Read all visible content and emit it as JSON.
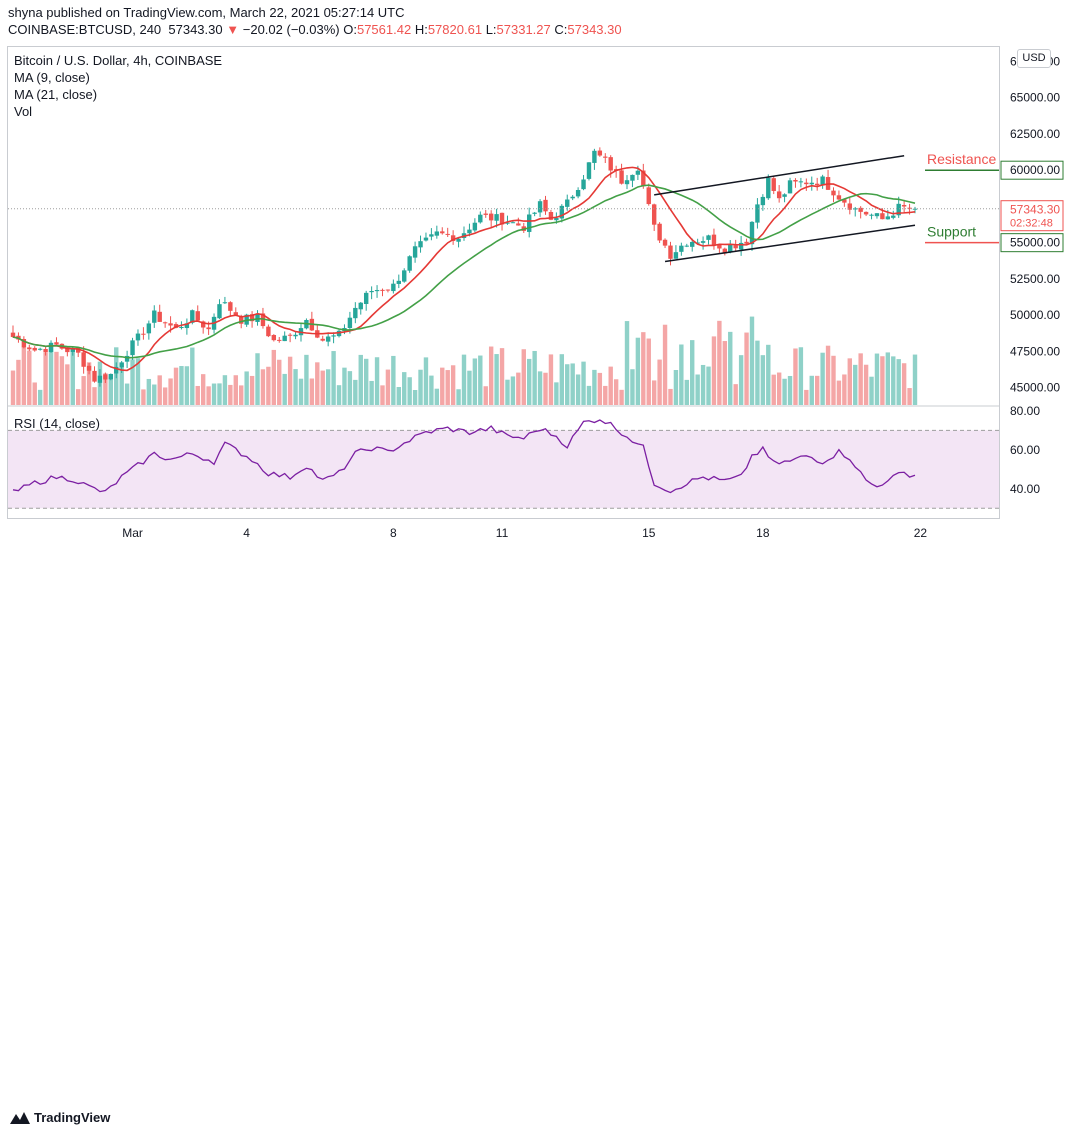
{
  "header": {
    "publisher": "shyna published on TradingView.com, March 22, 2021 05:27:14 UTC",
    "symbol": "COINBASE:BTCUSD, 240",
    "last": "57343.30",
    "arrow": "▼",
    "change": "−20.02 (−0.03%)",
    "o_label": "O:",
    "o_val": "57561.42",
    "h_label": "H:",
    "h_val": "57820.61",
    "l_label": "L:",
    "l_val": "57331.27",
    "c_label": "C:",
    "c_val": "57343.30"
  },
  "legend": {
    "title": "Bitcoin / U.S. Dollar, 4h, COINBASE",
    "ma9": "MA (9, close)",
    "ma21": "MA (21, close)",
    "vol": "Vol"
  },
  "currency_button": "USD",
  "footer": {
    "brand": "TradingView"
  },
  "colors": {
    "up": "#26a69a",
    "down": "#ef5350",
    "ma9": "#e53935",
    "ma21": "#43a047",
    "vol_up": "#8fd1c8",
    "vol_down": "#f4a6a6",
    "rsi": "#7b1fa2",
    "rsi_band": "#f3e5f5",
    "resistance": "#2e7d32",
    "support": "#2e7d32",
    "channel": "#131722"
  },
  "chart_data": [
    {
      "type": "candlestick",
      "title": "Bitcoin / U.S. Dollar, 4h, COINBASE",
      "y_axis_ticks": [
        45000,
        47500,
        50000,
        52500,
        55000,
        57500,
        60000,
        62500,
        65000,
        67500
      ],
      "y_axis_tick_labels": [
        "45000.00",
        "47500.00",
        "50000.00",
        "52500.00",
        "55000.00",
        "57500.00",
        "60000.00",
        "62500.00",
        "65000.00",
        "67500.00"
      ],
      "ylim": [
        43800,
        68500
      ],
      "x_axis_tick_labels": [
        "Mar",
        "4",
        "8",
        "11",
        "15",
        "18",
        "22"
      ],
      "x_axis_tick_index": [
        22,
        43,
        70,
        90,
        117,
        138,
        167
      ],
      "n_bars": 167,
      "ma_series": [
        {
          "name": "MA (9, close)",
          "color": "#e53935"
        },
        {
          "name": "MA (21, close)",
          "color": "#43a047"
        }
      ],
      "price_labels": [
        {
          "value": 60000.0,
          "text": "60000.00",
          "kind": "level"
        },
        {
          "value": 57343.3,
          "text": "57343.30",
          "kind": "last",
          "countdown": "02:32:48"
        },
        {
          "value": 55000.0,
          "text": "55000.00",
          "kind": "level"
        }
      ],
      "annotations": [
        {
          "text": "Resistance",
          "value": 60000
        },
        {
          "text": "Support",
          "value": 55000
        }
      ],
      "channel": {
        "upper": [
          {
            "x": 118,
            "y": 58300
          },
          {
            "x": 164,
            "y": 61000
          }
        ],
        "lower": [
          {
            "x": 120,
            "y": 53700
          },
          {
            "x": 166,
            "y": 56200
          }
        ]
      },
      "anchors": [
        {
          "i": 0,
          "c": 48500
        },
        {
          "i": 4,
          "c": 47600
        },
        {
          "i": 8,
          "c": 47900
        },
        {
          "i": 12,
          "c": 47300
        },
        {
          "i": 15,
          "c": 45600
        },
        {
          "i": 18,
          "c": 45900
        },
        {
          "i": 21,
          "c": 47500
        },
        {
          "i": 23,
          "c": 48400
        },
        {
          "i": 26,
          "c": 50000
        },
        {
          "i": 30,
          "c": 49000
        },
        {
          "i": 33,
          "c": 50000
        },
        {
          "i": 36,
          "c": 49000
        },
        {
          "i": 38,
          "c": 51000
        },
        {
          "i": 40,
          "c": 50400
        },
        {
          "i": 42,
          "c": 49700
        },
        {
          "i": 45,
          "c": 49800
        },
        {
          "i": 48,
          "c": 48200
        },
        {
          "i": 51,
          "c": 48500
        },
        {
          "i": 54,
          "c": 49700
        },
        {
          "i": 57,
          "c": 48300
        },
        {
          "i": 60,
          "c": 48600
        },
        {
          "i": 63,
          "c": 50500
        },
        {
          "i": 66,
          "c": 51700
        },
        {
          "i": 70,
          "c": 52000
        },
        {
          "i": 74,
          "c": 54500
        },
        {
          "i": 78,
          "c": 55600
        },
        {
          "i": 82,
          "c": 55400
        },
        {
          "i": 86,
          "c": 56800
        },
        {
          "i": 90,
          "c": 56600
        },
        {
          "i": 94,
          "c": 56100
        },
        {
          "i": 97,
          "c": 57600
        },
        {
          "i": 99,
          "c": 56600
        },
        {
          "i": 102,
          "c": 57700
        },
        {
          "i": 105,
          "c": 59600
        },
        {
          "i": 107,
          "c": 61200
        },
        {
          "i": 109,
          "c": 60600
        },
        {
          "i": 112,
          "c": 59300
        },
        {
          "i": 115,
          "c": 60300
        },
        {
          "i": 118,
          "c": 56000
        },
        {
          "i": 121,
          "c": 54200
        },
        {
          "i": 124,
          "c": 55100
        },
        {
          "i": 128,
          "c": 55300
        },
        {
          "i": 131,
          "c": 54600
        },
        {
          "i": 135,
          "c": 55200
        },
        {
          "i": 137,
          "c": 57700
        },
        {
          "i": 139,
          "c": 59300
        },
        {
          "i": 141,
          "c": 57900
        },
        {
          "i": 143,
          "c": 59000
        },
        {
          "i": 146,
          "c": 59200
        },
        {
          "i": 149,
          "c": 59300
        },
        {
          "i": 152,
          "c": 58200
        },
        {
          "i": 155,
          "c": 57300
        },
        {
          "i": 158,
          "c": 56900
        },
        {
          "i": 160,
          "c": 56600
        },
        {
          "i": 163,
          "c": 57400
        },
        {
          "i": 166,
          "c": 57343
        }
      ]
    },
    {
      "type": "line",
      "title": "RSI (14, close)",
      "ylim": [
        25,
        82
      ],
      "y_axis_ticks": [
        40,
        60,
        80
      ],
      "y_axis_tick_labels": [
        "40.00",
        "60.00",
        "80.00"
      ],
      "band": [
        30,
        70
      ],
      "series": [
        {
          "name": "RSI (14, close)",
          "color": "#7b1fa2"
        }
      ],
      "anchors": [
        {
          "i": 0,
          "v": 38
        },
        {
          "i": 4,
          "v": 43
        },
        {
          "i": 8,
          "v": 46
        },
        {
          "i": 11,
          "v": 45
        },
        {
          "i": 14,
          "v": 41
        },
        {
          "i": 17,
          "v": 38
        },
        {
          "i": 20,
          "v": 46
        },
        {
          "i": 23,
          "v": 52
        },
        {
          "i": 26,
          "v": 58
        },
        {
          "i": 29,
          "v": 55
        },
        {
          "i": 33,
          "v": 58
        },
        {
          "i": 37,
          "v": 54
        },
        {
          "i": 39,
          "v": 63
        },
        {
          "i": 41,
          "v": 60
        },
        {
          "i": 44,
          "v": 55
        },
        {
          "i": 47,
          "v": 48
        },
        {
          "i": 51,
          "v": 46
        },
        {
          "i": 54,
          "v": 52
        },
        {
          "i": 57,
          "v": 44
        },
        {
          "i": 60,
          "v": 48
        },
        {
          "i": 63,
          "v": 58
        },
        {
          "i": 66,
          "v": 61
        },
        {
          "i": 69,
          "v": 59
        },
        {
          "i": 73,
          "v": 65
        },
        {
          "i": 76,
          "v": 69
        },
        {
          "i": 80,
          "v": 71
        },
        {
          "i": 84,
          "v": 69
        },
        {
          "i": 88,
          "v": 71
        },
        {
          "i": 91,
          "v": 67
        },
        {
          "i": 94,
          "v": 66
        },
        {
          "i": 97,
          "v": 71
        },
        {
          "i": 100,
          "v": 67
        },
        {
          "i": 102,
          "v": 62
        },
        {
          "i": 105,
          "v": 74
        },
        {
          "i": 108,
          "v": 76
        },
        {
          "i": 110,
          "v": 73
        },
        {
          "i": 113,
          "v": 67
        },
        {
          "i": 116,
          "v": 61
        },
        {
          "i": 118,
          "v": 43
        },
        {
          "i": 121,
          "v": 39
        },
        {
          "i": 124,
          "v": 43
        },
        {
          "i": 127,
          "v": 46
        },
        {
          "i": 131,
          "v": 44
        },
        {
          "i": 134,
          "v": 46
        },
        {
          "i": 136,
          "v": 57
        },
        {
          "i": 138,
          "v": 60
        },
        {
          "i": 140,
          "v": 53
        },
        {
          "i": 143,
          "v": 54
        },
        {
          "i": 146,
          "v": 57
        },
        {
          "i": 149,
          "v": 54
        },
        {
          "i": 152,
          "v": 59
        },
        {
          "i": 154,
          "v": 56
        },
        {
          "i": 157,
          "v": 44
        },
        {
          "i": 159,
          "v": 41
        },
        {
          "i": 161,
          "v": 45
        },
        {
          "i": 164,
          "v": 48
        },
        {
          "i": 166,
          "v": 47
        }
      ],
      "x_axis_tick_labels": [
        "Mar",
        "4",
        "8",
        "11",
        "15",
        "18",
        "22"
      ]
    }
  ]
}
